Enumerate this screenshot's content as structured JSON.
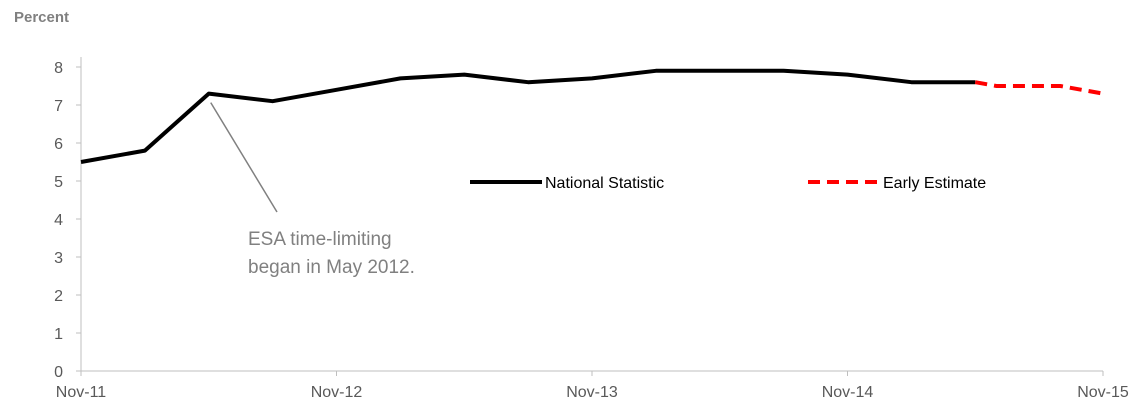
{
  "chart_data": {
    "type": "line",
    "title": "",
    "xlabel": "",
    "ylabel": "Percent",
    "ylim": [
      0,
      8
    ],
    "yticks": [
      0,
      1,
      2,
      3,
      4,
      5,
      6,
      7,
      8
    ],
    "xticks": [
      "Nov-11",
      "Nov-12",
      "Nov-13",
      "Nov-14",
      "Nov-15"
    ],
    "grid": false,
    "legend_position": "center-right",
    "series": [
      {
        "name": "National Statistic",
        "color": "#000000",
        "style": "solid",
        "points": [
          {
            "x": "Nov-11",
            "y": 5.5
          },
          {
            "x": "Feb-12",
            "y": 5.8
          },
          {
            "x": "May-12",
            "y": 7.3
          },
          {
            "x": "Aug-12",
            "y": 7.1
          },
          {
            "x": "Nov-12",
            "y": 7.4
          },
          {
            "x": "Feb-13",
            "y": 7.7
          },
          {
            "x": "May-13",
            "y": 7.8
          },
          {
            "x": "Aug-13",
            "y": 7.6
          },
          {
            "x": "Nov-13",
            "y": 7.7
          },
          {
            "x": "Feb-14",
            "y": 7.9
          },
          {
            "x": "May-14",
            "y": 7.9
          },
          {
            "x": "Aug-14",
            "y": 7.9
          },
          {
            "x": "Nov-14",
            "y": 7.8
          },
          {
            "x": "Feb-15",
            "y": 7.6
          },
          {
            "x": "May-15",
            "y": 7.6
          }
        ]
      },
      {
        "name": "Early Estimate",
        "color": "#ff0000",
        "style": "dashed",
        "points": [
          {
            "x": "May-15",
            "y": 7.6
          },
          {
            "x": "Jun-15",
            "y": 7.5
          },
          {
            "x": "Aug-15",
            "y": 7.5
          },
          {
            "x": "Sep-15",
            "y": 7.5
          },
          {
            "x": "Nov-15",
            "y": 7.3
          }
        ]
      }
    ],
    "annotations": [
      {
        "text_lines": [
          "ESA time-limiting",
          "began in May 2012."
        ],
        "points_to": {
          "x": "May-12",
          "y": 7.3
        }
      }
    ]
  }
}
